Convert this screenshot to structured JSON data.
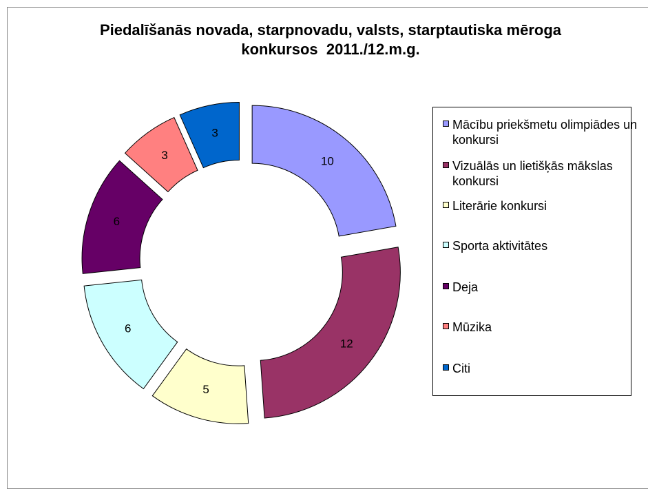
{
  "chart_data": {
    "type": "donut",
    "title": "Piedalīšanās novada, starpnovadu, valsts, starptautiska mēroga konkursos  2011./12.m.g.",
    "categories": [
      "Mācību priekšmetu olimpiādes un konkursi",
      "Vizuālās un lietišķās mākslas konkursi",
      "Literārie konkursi",
      "Sporta aktivitātes",
      "Deja",
      "Mūzika",
      "Citi"
    ],
    "values": [
      10,
      12,
      5,
      6,
      6,
      3,
      3
    ],
    "colors": [
      "#9999ff",
      "#993366",
      "#ffffcc",
      "#ccffff",
      "#660066",
      "#ff8080",
      "#0066cc"
    ],
    "legend": "right"
  }
}
